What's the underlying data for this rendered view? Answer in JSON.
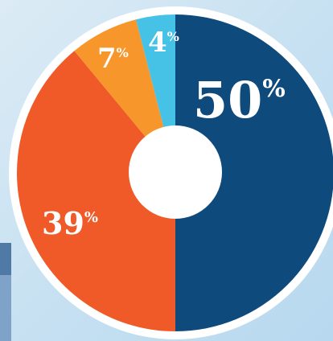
{
  "chart_data": {
    "type": "pie",
    "categories": [
      "50%",
      "39%",
      "7%",
      "4%"
    ],
    "values": [
      50,
      39,
      7,
      4
    ],
    "value_suffix": "%",
    "colors": [
      "#0e4a7c",
      "#f05a28",
      "#f7962b",
      "#45c2e6"
    ],
    "legend": "none",
    "style": "donut"
  }
}
